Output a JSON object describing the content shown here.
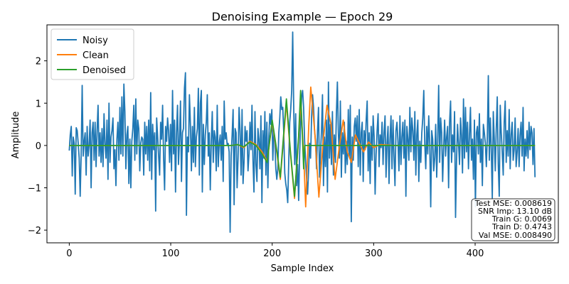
{
  "chart_data": {
    "type": "line",
    "title": "Denoising Example — Epoch 29",
    "xlabel": "Sample Index",
    "ylabel": "Amplitude",
    "xlim": [
      -22,
      482
    ],
    "ylim": [
      -2.3,
      2.85
    ],
    "xticks": [
      0,
      100,
      200,
      300,
      400
    ],
    "yticks": [
      -2,
      -1,
      0,
      1,
      2
    ],
    "xtick_labels": [
      "0",
      "100",
      "200",
      "300",
      "400"
    ],
    "ytick_labels": [
      "−2",
      "−1",
      "0",
      "1",
      "2"
    ],
    "grid": false,
    "legend_position": "top-left",
    "n_samples": 460,
    "series": [
      {
        "name": "Noisy",
        "color": "#1f77b4",
        "x_range": [
          0,
          459
        ],
        "values": [
          -0.12,
          0.25,
          0.45,
          -0.72,
          0.2,
          0.05,
          -1.15,
          0.42,
          0.35,
          0.05,
          -0.3,
          -1.2,
          -0.2,
          1.42,
          -0.25,
          0.1,
          0.3,
          -0.7,
          0.45,
          -0.25,
          0.02,
          0.6,
          -1.0,
          0.3,
          0.55,
          -0.35,
          0.55,
          -0.5,
          0.35,
          0.95,
          -0.25,
          0.3,
          -0.4,
          0.4,
          -0.5,
          0.75,
          0.05,
          -0.3,
          0.6,
          -0.8,
          1.0,
          -0.4,
          0.2,
          0.35,
          0.65,
          -0.55,
          -0.1,
          -0.95,
          0.15,
          0.55,
          -0.35,
          0.9,
          -0.2,
          1.15,
          -0.25,
          1.45,
          0.8,
          -0.55,
          0.25,
          0.45,
          -0.9,
          0.15,
          -1.0,
          0.1,
          0.4,
          0.95,
          -0.35,
          1.1,
          -0.2,
          0.6,
          0.4,
          -0.6,
          0.05,
          0.2,
          0.15,
          -0.7,
          0.55,
          -0.2,
          0.45,
          -0.35,
          0.6,
          -0.6,
          1.25,
          -0.8,
          0.5,
          -0.1,
          0.3,
          -1.55,
          0.65,
          0.2,
          -0.25,
          -0.7,
          0.55,
          0.15,
          0.95,
          -0.3,
          -1.05,
          0.45,
          0.1,
          0.65,
          0.35,
          -0.4,
          0.5,
          -0.6,
          1.3,
          -0.2,
          0.6,
          -1.1,
          0.3,
          0.95,
          -0.45,
          0.15,
          1.05,
          -0.85,
          0.3,
          0.4,
          1.35,
          1.72,
          -1.65,
          0.2,
          -0.15,
          1.2,
          0.5,
          -0.6,
          0.45,
          -0.4,
          0.9,
          -0.5,
          0.2,
          0.4,
          1.35,
          -0.7,
          1.0,
          1.3,
          -1.1,
          0.5,
          -0.45,
          0.25,
          0.55,
          1.2,
          -0.25,
          0.3,
          -1.05,
          0.1,
          0.8,
          -0.4,
          0.35,
          0.2,
          -0.6,
          0.95,
          -0.5,
          0.05,
          0.25,
          -0.35,
          0.45,
          -0.85,
          1.05,
          0.15,
          0.3,
          0.02,
          0.05,
          -0.15,
          -2.05,
          -0.25,
          0.25,
          0.85,
          -1.4,
          0.4,
          0.3,
          -1.0,
          -0.3,
          0.9,
          0.35,
          -0.7,
          0.85,
          -0.9,
          -0.4,
          0.45,
          0.1,
          0.35,
          -0.6,
          -0.2,
          0.55,
          -0.1,
          0.95,
          -0.35,
          -1.1,
          0.8,
          -0.45,
          -0.85,
          0.4,
          0.15,
          -0.55,
          0.7,
          -1.35,
          0.35,
          -0.3,
          0.8,
          -0.7,
          0.55,
          -1.0,
          0.2,
          0.75,
          0.5,
          0.85,
          -0.35,
          0.3,
          0.15,
          -0.55,
          -0.8,
          -0.55,
          0.3,
          0.65,
          1.15,
          0.85,
          0.9,
          0.3,
          -0.65,
          -0.9,
          -1.05,
          -1.35,
          -0.4,
          0.55,
          0.85,
          1.3,
          2.68,
          0.95,
          -0.45,
          0.75,
          -0.95,
          -0.45,
          -1.3,
          -0.2,
          0.55,
          1.15,
          1.3,
          0.9,
          0.1,
          -0.35,
          -0.8,
          -1.15,
          -0.6,
          0.05,
          -0.3,
          0.65,
          1.2,
          0.9,
          0.35,
          0.1,
          -0.55,
          0.35,
          0.9,
          -0.75,
          -0.2,
          0.35,
          1.2,
          -0.95,
          0.2,
          -0.5,
          0.6,
          -1.1,
          1.5,
          -0.3,
          0.5,
          -0.45,
          0.8,
          -0.7,
          0.25,
          -0.4,
          0.75,
          1.5,
          0.3,
          -0.3,
          1.05,
          -0.75,
          0.3,
          -0.2,
          0.55,
          -0.65,
          0.1,
          -0.45,
          0.85,
          -0.25,
          0.95,
          -1.8,
          0.2,
          -0.35,
          0.45,
          0.65,
          0.1,
          0.7,
          -0.5,
          0.85,
          -0.7,
          0.3,
          0.55,
          -0.85,
          0.35,
          -0.1,
          0.6,
          1.05,
          -0.6,
          0.3,
          -0.9,
          0.45,
          -0.35,
          0.7,
          0.2,
          -1.15,
          -0.2,
          0.35,
          0.75,
          -0.5,
          0.25,
          -0.05,
          0.55,
          -0.45,
          0.3,
          0.7,
          -0.75,
          0.05,
          0.45,
          -0.9,
          0.15,
          0.7,
          -0.55,
          0.6,
          -0.25,
          -0.95,
          0.35,
          0.55,
          0.1,
          -0.6,
          0.7,
          -0.45,
          0.2,
          0.55,
          -0.3,
          0.6,
          -1.2,
          0.45,
          0.15,
          -0.35,
          0.9,
          -0.15,
          0.65,
          0.35,
          -0.35,
          0.8,
          -0.7,
          0.25,
          0.6,
          -0.85,
          0.1,
          -0.4,
          0.3,
          0.65,
          1.3,
          0.05,
          -0.55,
          0.45,
          -0.2,
          0.7,
          0.05,
          -1.45,
          0.35,
          0.15,
          -0.6,
          -0.3,
          0.5,
          -0.75,
          0.1,
          1.42,
          -0.4,
          0.65,
          0.3,
          -0.85,
          -0.05,
          0.6,
          -0.25,
          0.2,
          0.45,
          -1.0,
          0.55,
          1.05,
          -0.4,
          0.25,
          -0.15,
          0.8,
          -1.7,
          -0.35,
          0.5,
          0.05,
          -0.45,
          0.65,
          0.25,
          -0.65,
          1.1,
          -0.3,
          0.9,
          -0.15,
          0.55,
          -0.55,
          0.25,
          0.9,
          -0.35,
          0.15,
          -0.8,
          0.6,
          -1.45,
          0.3,
          0.45,
          -0.2,
          0.75,
          -0.4,
          0.15,
          -0.95,
          0.5,
          0.3,
          0.05,
          -0.5,
          0.2,
          1.65,
          -0.35,
          0.65,
          -0.1,
          -1.25,
          0.8,
          0.15,
          -0.6,
          0.4,
          1.15,
          -0.45,
          -1.2,
          0.95,
          0.3,
          -0.15,
          -0.7,
          0.55,
          1.05,
          -0.4,
          0.35,
          -0.25,
          0.85,
          -0.55,
          0.25,
          0.55,
          -0.35,
          -0.1,
          0.65,
          -0.5,
          -0.15,
          0.4,
          -0.5,
          0.25,
          0.55,
          -0.25,
          0.9,
          -0.6,
          0.15,
          -0.25,
          0.35,
          -0.3,
          0.55,
          -0.1,
          0.45,
          0.3,
          -0.45,
          0.4,
          -0.75
        ]
      },
      {
        "name": "Clean",
        "color": "#ff7f0e",
        "points": [
          [
            0,
            0
          ],
          [
            160,
            0
          ],
          [
            166,
            0.02
          ],
          [
            172,
            -0.05
          ],
          [
            178,
            0.1
          ],
          [
            184,
            0.02
          ],
          [
            190,
            -0.15
          ],
          [
            195,
            -0.38
          ],
          [
            200,
            0.55
          ],
          [
            205,
            -0.25
          ],
          [
            208,
            -0.8
          ],
          [
            214,
            1.0
          ],
          [
            218,
            -0.2
          ],
          [
            222,
            -1.25
          ],
          [
            226,
            0.15
          ],
          [
            228,
            1.05
          ],
          [
            231,
            -0.2
          ],
          [
            233,
            -1.45
          ],
          [
            236,
            0.45
          ],
          [
            238,
            1.38
          ],
          [
            242,
            0.3
          ],
          [
            246,
            -1.22
          ],
          [
            250,
            0.05
          ],
          [
            254,
            0.95
          ],
          [
            258,
            0.5
          ],
          [
            262,
            -0.8
          ],
          [
            266,
            -0.05
          ],
          [
            270,
            0.6
          ],
          [
            274,
            -0.15
          ],
          [
            278,
            -0.4
          ],
          [
            282,
            0.25
          ],
          [
            286,
            0.05
          ],
          [
            290,
            -0.15
          ],
          [
            295,
            0.08
          ],
          [
            300,
            -0.05
          ],
          [
            306,
            0.02
          ],
          [
            320,
            0
          ],
          [
            459,
            0
          ]
        ]
      },
      {
        "name": "Denoised",
        "color": "#2ca02c",
        "points": [
          [
            0,
            0
          ],
          [
            160,
            0
          ],
          [
            166,
            0.02
          ],
          [
            172,
            -0.03
          ],
          [
            178,
            0.08
          ],
          [
            184,
            0.0
          ],
          [
            190,
            -0.2
          ],
          [
            195,
            -0.4
          ],
          [
            200,
            0.6
          ],
          [
            205,
            -0.2
          ],
          [
            208,
            -0.75
          ],
          [
            214,
            1.1
          ],
          [
            218,
            -0.15
          ],
          [
            222,
            -1.2
          ],
          [
            226,
            0.2
          ],
          [
            228,
            1.3
          ],
          [
            231,
            -0.55
          ],
          [
            232,
            0.0
          ],
          [
            459,
            0
          ]
        ]
      }
    ],
    "annotation": {
      "lines": [
        "Test MSE: 0.008619",
        "SNR Imp: 13.10 dB",
        "Train G: 0.0069",
        "Train D: 0.4743",
        "Val MSE: 0.008490"
      ],
      "position": "bottom-right"
    }
  }
}
